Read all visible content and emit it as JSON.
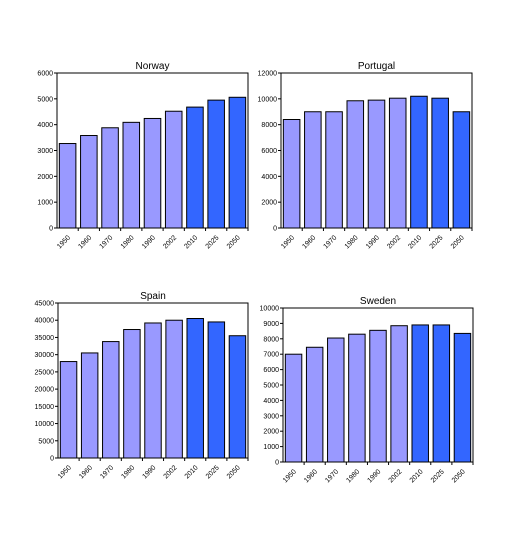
{
  "colors": {
    "light": "#9999ff",
    "dark": "#3366ff",
    "stroke": "#000000"
  },
  "chart_data": [
    {
      "type": "bar",
      "title": "Norway",
      "categories": [
        "1950",
        "1960",
        "1970",
        "1980",
        "1990",
        "2002",
        "2010",
        "2025",
        "2050"
      ],
      "values": [
        3270,
        3580,
        3880,
        4090,
        4240,
        4520,
        4680,
        4950,
        5060
      ],
      "projected_from_index": 6,
      "ylim": [
        0,
        6000
      ],
      "yticks": [
        "0",
        "1000",
        "2000",
        "3000",
        "4000",
        "5000",
        "6000"
      ]
    },
    {
      "type": "bar",
      "title": "Portugal",
      "categories": [
        "1950",
        "1960",
        "1970",
        "1980",
        "1990",
        "2002",
        "2010",
        "2025",
        "2050"
      ],
      "values": [
        8400,
        9000,
        9000,
        9850,
        9900,
        10050,
        10200,
        10050,
        9000
      ],
      "projected_from_index": 6,
      "ylim": [
        0,
        12000
      ],
      "yticks": [
        "0",
        "2000",
        "4000",
        "6000",
        "8000",
        "10000",
        "12000"
      ]
    },
    {
      "type": "bar",
      "title": "Spain",
      "categories": [
        "1950",
        "1960",
        "1970",
        "1980",
        "1990",
        "2002",
        "2010",
        "2025",
        "2050"
      ],
      "values": [
        28000,
        30500,
        33800,
        37300,
        39200,
        40000,
        40500,
        39500,
        35500
      ],
      "projected_from_index": 6,
      "ylim": [
        0,
        45000
      ],
      "yticks": [
        "0",
        "5000",
        "10000",
        "15000",
        "20000",
        "25000",
        "30000",
        "35000",
        "40000",
        "45000"
      ]
    },
    {
      "type": "bar",
      "title": "Sweden",
      "categories": [
        "1950",
        "1960",
        "1970",
        "1980",
        "1990",
        "2002",
        "2010",
        "2025",
        "2050"
      ],
      "values": [
        7000,
        7450,
        8050,
        8300,
        8550,
        8850,
        8900,
        8900,
        8350
      ],
      "projected_from_index": 6,
      "ylim": [
        0,
        10000
      ],
      "yticks": [
        "0",
        "1000",
        "2000",
        "3000",
        "4000",
        "5000",
        "6000",
        "7000",
        "8000",
        "9000",
        "10000"
      ]
    }
  ]
}
